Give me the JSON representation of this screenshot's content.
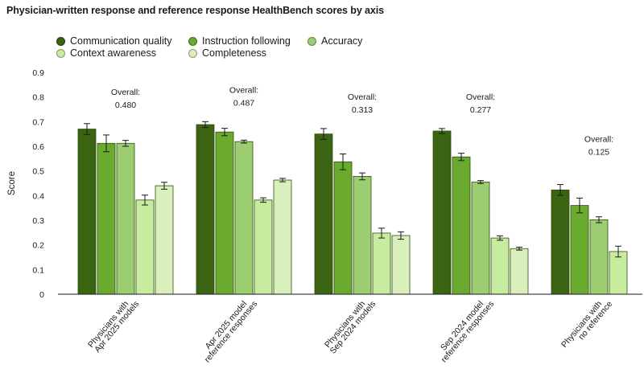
{
  "chart_data": {
    "type": "bar",
    "title": "Physician-written response and reference response HealthBench scores by axis",
    "xlabel": "",
    "ylabel": "Score",
    "ylim": [
      0,
      0.9
    ],
    "yticks": [
      "0",
      "0.1",
      "0.2",
      "0.3",
      "0.4",
      "0.5",
      "0.6",
      "0.7",
      "0.8",
      "0.9"
    ],
    "ytick_values": [
      0,
      0.1,
      0.2,
      0.3,
      0.4,
      0.5,
      0.6,
      0.7,
      0.8,
      0.9
    ],
    "grid": false,
    "legend_position": "top-left",
    "categories": [
      [
        "Physicians with",
        "Apr 2025 models"
      ],
      [
        "Apr 2025 model",
        "reference responses"
      ],
      [
        "Physicians with",
        "Sep 2024 models"
      ],
      [
        "Sep 2024 model",
        "reference responses"
      ],
      [
        "Physicians with",
        "no reference"
      ]
    ],
    "overall_label": "Overall:",
    "overall": [
      "0.480",
      "0.487",
      "0.313",
      "0.277",
      "0.125"
    ],
    "series": [
      {
        "name": "Communication quality",
        "color": "#3a6312",
        "values": [
          0.67,
          0.688,
          0.65,
          0.662,
          0.423
        ],
        "errors": [
          0.022,
          0.012,
          0.022,
          0.01,
          0.022
        ]
      },
      {
        "name": "Instruction following",
        "color": "#69aa2f",
        "values": [
          0.612,
          0.658,
          0.537,
          0.557,
          0.36
        ],
        "errors": [
          0.034,
          0.015,
          0.032,
          0.015,
          0.03
        ]
      },
      {
        "name": "Accuracy",
        "color": "#9ccd70",
        "values": [
          0.612,
          0.619,
          0.478,
          0.455,
          0.302
        ],
        "errors": [
          0.012,
          0.006,
          0.014,
          0.006,
          0.012
        ]
      },
      {
        "name": "Context awareness",
        "color": "#c8ec9f",
        "values": [
          0.382,
          0.382,
          0.248,
          0.228,
          0.173
        ],
        "errors": [
          0.02,
          0.009,
          0.02,
          0.009,
          0.022
        ]
      },
      {
        "name": "Completeness",
        "color": "#d9f0bc",
        "values": [
          0.44,
          0.463,
          0.238,
          0.185,
          null
        ],
        "errors": [
          0.014,
          0.007,
          0.015,
          0.006,
          null
        ]
      }
    ]
  }
}
